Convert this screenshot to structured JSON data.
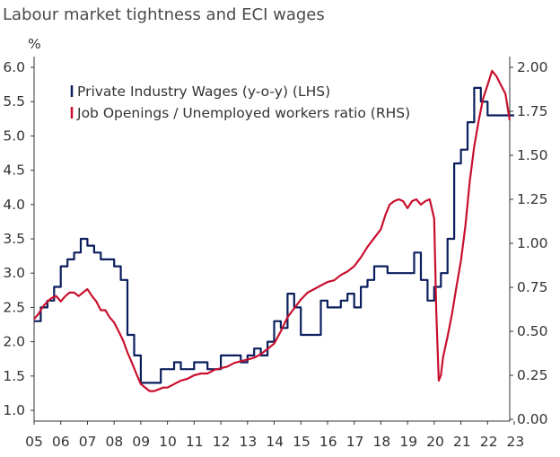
{
  "chart_data": {
    "type": "line",
    "title": "Labour market tightness and ECI wages",
    "y_left_unit": "%",
    "y_left_ticks": [
      "1.0",
      "1.5",
      "2.0",
      "2.5",
      "3.0",
      "3.5",
      "4.0",
      "4.5",
      "5.0",
      "5.5",
      "6.0"
    ],
    "y_left_range": [
      0.9,
      6.1
    ],
    "y_right_ticks": [
      "0.00",
      "0.25",
      "0.50",
      "0.75",
      "1.00",
      "1.25",
      "1.50",
      "1.75",
      "2.00"
    ],
    "y_right_range": [
      0.0,
      2.0
    ],
    "x_ticks": [
      "05",
      "06",
      "07",
      "08",
      "09",
      "10",
      "11",
      "12",
      "13",
      "14",
      "15",
      "16",
      "17",
      "18",
      "19",
      "20",
      "21",
      "22",
      "23"
    ],
    "x_range": [
      2005.0,
      2023.0
    ],
    "legend_placement": "top-left",
    "grid": false,
    "series": [
      {
        "name": "Private Industry Wages (y-o-y) (LHS)",
        "axis": "left",
        "color": "#0b1f5e",
        "step": true,
        "x": [
          2005.0,
          2005.25,
          2005.5,
          2005.75,
          2006.0,
          2006.25,
          2006.5,
          2006.75,
          2007.0,
          2007.25,
          2007.5,
          2007.75,
          2008.0,
          2008.25,
          2008.5,
          2008.75,
          2009.0,
          2009.25,
          2009.5,
          2009.75,
          2010.0,
          2010.25,
          2010.5,
          2010.75,
          2011.0,
          2011.25,
          2011.5,
          2011.75,
          2012.0,
          2012.25,
          2012.5,
          2012.75,
          2013.0,
          2013.25,
          2013.5,
          2013.75,
          2014.0,
          2014.25,
          2014.5,
          2014.75,
          2015.0,
          2015.25,
          2015.5,
          2015.75,
          2016.0,
          2016.25,
          2016.5,
          2016.75,
          2017.0,
          2017.25,
          2017.5,
          2017.75,
          2018.0,
          2018.25,
          2018.5,
          2018.75,
          2019.0,
          2019.25,
          2019.5,
          2019.75,
          2020.0,
          2020.25,
          2020.5,
          2020.75,
          2021.0,
          2021.25,
          2021.5,
          2021.75,
          2022.0,
          2022.25,
          2022.5,
          2022.75
        ],
        "values": [
          2.3,
          2.5,
          2.6,
          2.8,
          3.1,
          3.2,
          3.3,
          3.5,
          3.4,
          3.3,
          3.2,
          3.2,
          3.1,
          2.9,
          2.1,
          1.8,
          1.4,
          1.4,
          1.4,
          1.6,
          1.6,
          1.7,
          1.6,
          1.6,
          1.7,
          1.7,
          1.6,
          1.6,
          1.8,
          1.8,
          1.8,
          1.7,
          1.8,
          1.9,
          1.8,
          2.0,
          2.3,
          2.2,
          2.7,
          2.5,
          2.1,
          2.1,
          2.1,
          2.6,
          2.5,
          2.5,
          2.6,
          2.7,
          2.5,
          2.8,
          2.9,
          3.1,
          3.1,
          3.0,
          3.0,
          3.0,
          3.0,
          3.3,
          2.9,
          2.6,
          2.8,
          3.0,
          3.5,
          4.6,
          4.8,
          5.2,
          5.7,
          5.5,
          5.3,
          5.3,
          5.3,
          5.3
        ]
      },
      {
        "name": "Job Openings / Unemployed workers ratio (RHS)",
        "axis": "right",
        "color": "#c8102e",
        "step": false,
        "x": [
          2005.0,
          2005.17,
          2005.33,
          2005.5,
          2005.67,
          2005.83,
          2006.0,
          2006.17,
          2006.33,
          2006.5,
          2006.67,
          2006.83,
          2007.0,
          2007.17,
          2007.33,
          2007.5,
          2007.67,
          2007.83,
          2008.0,
          2008.17,
          2008.33,
          2008.5,
          2008.67,
          2008.83,
          2009.0,
          2009.17,
          2009.33,
          2009.5,
          2009.67,
          2009.83,
          2010.0,
          2010.25,
          2010.5,
          2010.75,
          2011.0,
          2011.25,
          2011.5,
          2011.75,
          2012.0,
          2012.25,
          2012.5,
          2012.75,
          2013.0,
          2013.25,
          2013.5,
          2013.75,
          2014.0,
          2014.25,
          2014.5,
          2014.75,
          2015.0,
          2015.25,
          2015.5,
          2015.75,
          2016.0,
          2016.25,
          2016.5,
          2016.75,
          2017.0,
          2017.25,
          2017.5,
          2017.75,
          2018.0,
          2018.17,
          2018.33,
          2018.5,
          2018.67,
          2018.83,
          2019.0,
          2019.17,
          2019.33,
          2019.5,
          2019.67,
          2019.83,
          2020.0,
          2020.08,
          2020.17,
          2020.25,
          2020.33,
          2020.5,
          2020.67,
          2020.83,
          2021.0,
          2021.17,
          2021.33,
          2021.5,
          2021.67,
          2021.83,
          2022.0,
          2022.17,
          2022.33,
          2022.5,
          2022.67,
          2022.83
        ],
        "values": [
          0.57,
          0.6,
          0.64,
          0.67,
          0.69,
          0.7,
          0.67,
          0.7,
          0.72,
          0.72,
          0.7,
          0.72,
          0.74,
          0.7,
          0.67,
          0.62,
          0.62,
          0.58,
          0.55,
          0.5,
          0.45,
          0.38,
          0.32,
          0.26,
          0.2,
          0.18,
          0.16,
          0.16,
          0.17,
          0.18,
          0.18,
          0.2,
          0.22,
          0.23,
          0.25,
          0.26,
          0.26,
          0.28,
          0.29,
          0.3,
          0.32,
          0.33,
          0.34,
          0.35,
          0.37,
          0.4,
          0.43,
          0.5,
          0.58,
          0.63,
          0.68,
          0.72,
          0.74,
          0.76,
          0.78,
          0.79,
          0.82,
          0.84,
          0.87,
          0.92,
          0.98,
          1.03,
          1.08,
          1.16,
          1.22,
          1.24,
          1.25,
          1.24,
          1.2,
          1.24,
          1.25,
          1.22,
          1.24,
          1.25,
          1.14,
          0.6,
          0.22,
          0.25,
          0.35,
          0.47,
          0.6,
          0.75,
          0.9,
          1.1,
          1.35,
          1.55,
          1.7,
          1.82,
          1.9,
          1.98,
          1.95,
          1.9,
          1.85,
          1.7
        ]
      }
    ]
  }
}
